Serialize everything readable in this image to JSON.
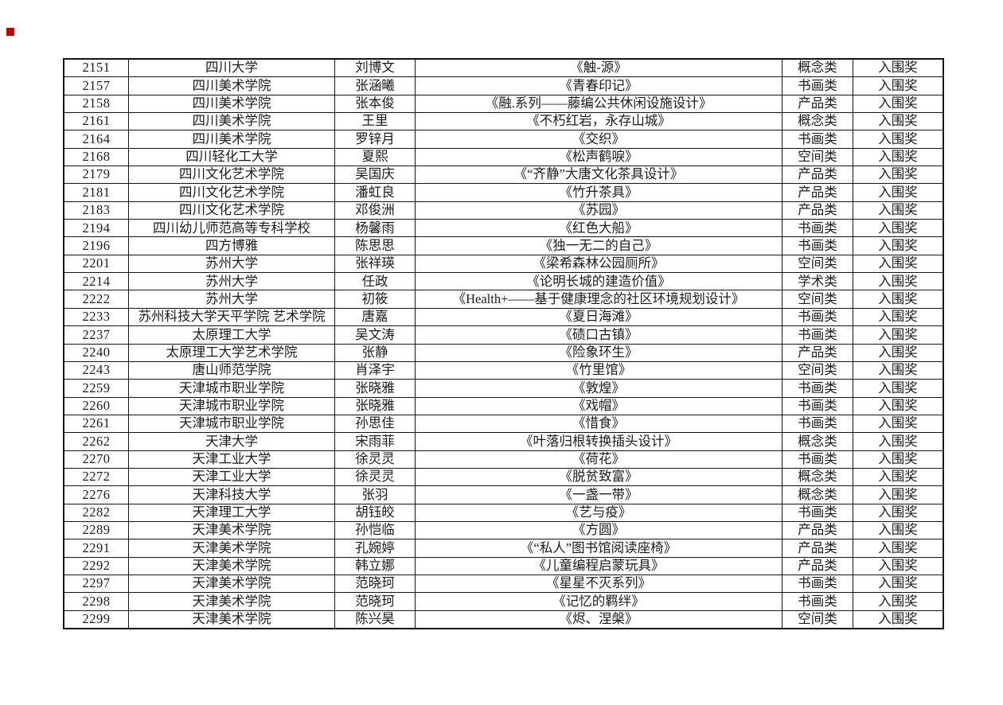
{
  "page": {
    "background": "#ffffff",
    "marker_color": "#c00000",
    "text_color": "#1c1c1c",
    "border_color": "#141414"
  },
  "table": {
    "column_names": [
      "number",
      "university",
      "author",
      "title",
      "category",
      "award"
    ],
    "rows": [
      [
        "2151",
        "四川大学",
        "刘博文",
        "《触-源》",
        "概念类",
        "入围奖"
      ],
      [
        "2157",
        "四川美术学院",
        "张涵曦",
        "《青春印记》",
        "书画类",
        "入围奖"
      ],
      [
        "2158",
        "四川美术学院",
        "张本俊",
        "《融.系列——藤编公共休闲设施设计》",
        "产品类",
        "入围奖"
      ],
      [
        "2161",
        "四川美术学院",
        "王里",
        "《不朽红岩，永存山城》",
        "概念类",
        "入围奖"
      ],
      [
        "2164",
        "四川美术学院",
        "罗锌月",
        "《交织》",
        "书画类",
        "入围奖"
      ],
      [
        "2168",
        "四川轻化工大学",
        "夏熙",
        "《松声鹤唳》",
        "空间类",
        "入围奖"
      ],
      [
        "2179",
        "四川文化艺术学院",
        "吴国庆",
        "《“齐静”大唐文化茶具设计》",
        "产品类",
        "入围奖"
      ],
      [
        "2181",
        "四川文化艺术学院",
        "潘虹良",
        "《竹升茶具》",
        "产品类",
        "入围奖"
      ],
      [
        "2183",
        "四川文化艺术学院",
        "邓俊洲",
        "《苏园》",
        "产品类",
        "入围奖"
      ],
      [
        "2194",
        "四川幼儿师范高等专科学校",
        "杨馨雨",
        "《红色大船》",
        "书画类",
        "入围奖"
      ],
      [
        "2196",
        "四方博雅",
        "陈思思",
        "《独一无二的自己》",
        "书画类",
        "入围奖"
      ],
      [
        "2201",
        "苏州大学",
        "张祥瑛",
        "《梁希森林公园厕所》",
        "空间类",
        "入围奖"
      ],
      [
        "2214",
        "苏州大学",
        "任政",
        "《论明长城的建造价值》",
        "学术类",
        "入围奖"
      ],
      [
        "2222",
        "苏州大学",
        "初筱",
        "《Health+——基于健康理念的社区环境规划设计》",
        "空间类",
        "入围奖"
      ],
      [
        "2233",
        "苏州科技大学天平学院 艺术学院",
        "唐嘉",
        "《夏日海滩》",
        "书画类",
        "入围奖"
      ],
      [
        "2237",
        "太原理工大学",
        "吴文涛",
        "《碛口古镇》",
        "书画类",
        "入围奖"
      ],
      [
        "2240",
        "太原理工大学艺术学院",
        "张静",
        "《险象环生》",
        "产品类",
        "入围奖"
      ],
      [
        "2243",
        "唐山师范学院",
        "肖泽宇",
        "《竹里馆》",
        "空间类",
        "入围奖"
      ],
      [
        "2259",
        "天津城市职业学院",
        "张晓雅",
        "《敦煌》",
        "书画类",
        "入围奖"
      ],
      [
        "2260",
        "天津城市职业学院",
        "张晓雅",
        "《戏帽》",
        "书画类",
        "入围奖"
      ],
      [
        "2261",
        "天津城市职业学院",
        "孙思佳",
        "《惜食》",
        "书画类",
        "入围奖"
      ],
      [
        "2262",
        "天津大学",
        "宋雨菲",
        "《叶落归根转换插头设计》",
        "概念类",
        "入围奖"
      ],
      [
        "2270",
        "天津工业大学",
        "徐灵灵",
        "《荷花》",
        "书画类",
        "入围奖"
      ],
      [
        "2272",
        "天津工业大学",
        "徐灵灵",
        "《脱贫致富》",
        "概念类",
        "入围奖"
      ],
      [
        "2276",
        "天津科技大学",
        "张羽",
        "《一盏一带》",
        "概念类",
        "入围奖"
      ],
      [
        "2282",
        "天津理工大学",
        "胡钰皎",
        "《艺与疫》",
        "书画类",
        "入围奖"
      ],
      [
        "2289",
        "天津美术学院",
        "孙恺临",
        "《方圆》",
        "产品类",
        "入围奖"
      ],
      [
        "2291",
        "天津美术学院",
        "孔婉婷",
        "《“私人”图书馆阅读座椅》",
        "产品类",
        "入围奖"
      ],
      [
        "2292",
        "天津美术学院",
        "韩立娜",
        "《儿童编程启蒙玩具》",
        "产品类",
        "入围奖"
      ],
      [
        "2297",
        "天津美术学院",
        "范晓珂",
        "《星星不灭系列》",
        "书画类",
        "入围奖"
      ],
      [
        "2298",
        "天津美术学院",
        "范晓珂",
        "《记忆的羁绊》",
        "书画类",
        "入围奖"
      ],
      [
        "2299",
        "天津美术学院",
        "陈兴昊",
        "《烬、涅槃》",
        "空间类",
        "入围奖"
      ]
    ]
  }
}
